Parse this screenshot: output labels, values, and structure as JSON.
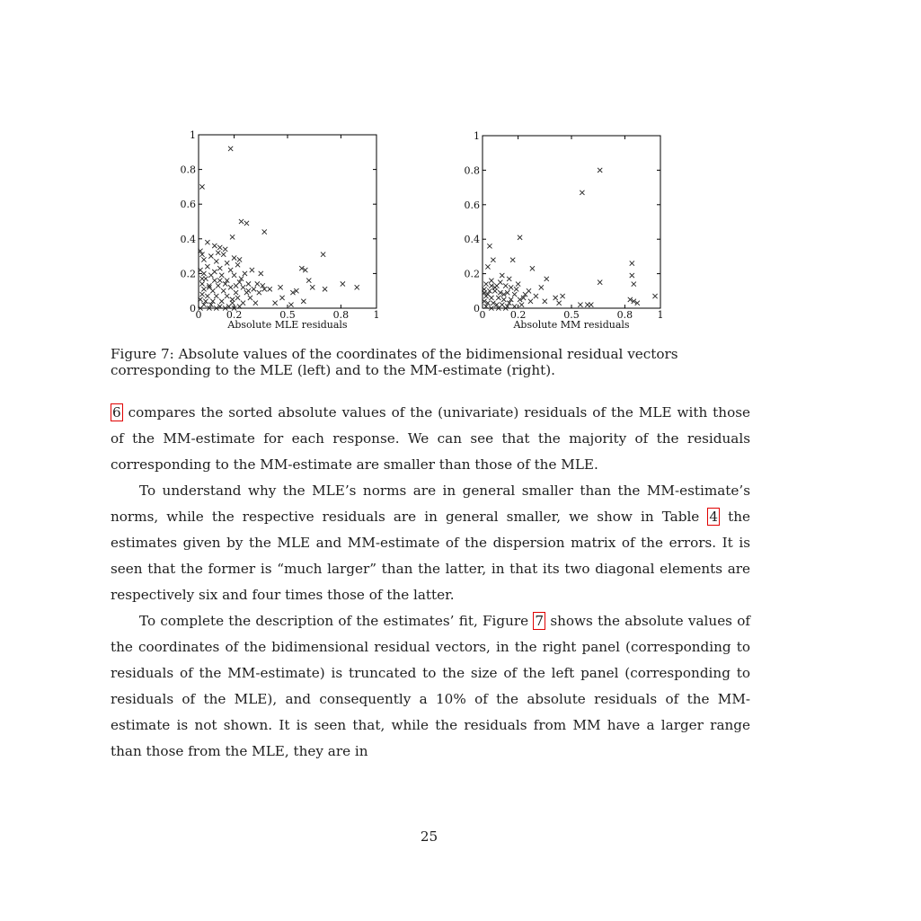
{
  "chart_data": [
    {
      "type": "scatter",
      "xlabel": "Absolute MLE residuals",
      "xlim": [
        0,
        1
      ],
      "ylim": [
        0,
        1
      ],
      "x_ticks": [
        0,
        0.2,
        0.5,
        0.8,
        1
      ],
      "y_ticks": [
        0,
        0.2,
        0.4,
        0.6,
        0.8,
        1
      ],
      "x_tick_labels": [
        "0",
        "0.2",
        "0.5",
        "0.8",
        "1"
      ],
      "y_tick_labels": [
        "0",
        "0.2",
        "0.4",
        "0.6",
        "0.8",
        "1"
      ],
      "marker": "x",
      "points": [
        [
          0.18,
          0.92
        ],
        [
          0.02,
          0.7
        ],
        [
          0.24,
          0.5
        ],
        [
          0.27,
          0.49
        ],
        [
          0.37,
          0.44
        ],
        [
          0.19,
          0.41
        ],
        [
          0.05,
          0.38
        ],
        [
          0.09,
          0.36
        ],
        [
          0.12,
          0.35
        ],
        [
          0.15,
          0.34
        ],
        [
          0.11,
          0.32
        ],
        [
          0.01,
          0.33
        ],
        [
          0.02,
          0.31
        ],
        [
          0.07,
          0.3
        ],
        [
          0.14,
          0.31
        ],
        [
          0.2,
          0.29
        ],
        [
          0.23,
          0.28
        ],
        [
          0.03,
          0.28
        ],
        [
          0.1,
          0.27
        ],
        [
          0.16,
          0.26
        ],
        [
          0.22,
          0.25
        ],
        [
          0.05,
          0.24
        ],
        [
          0.12,
          0.23
        ],
        [
          0.18,
          0.22
        ],
        [
          0.3,
          0.22
        ],
        [
          0.35,
          0.2
        ],
        [
          0.01,
          0.22
        ],
        [
          0.03,
          0.2
        ],
        [
          0.07,
          0.19
        ],
        [
          0.13,
          0.19
        ],
        [
          0.2,
          0.19
        ],
        [
          0.26,
          0.2
        ],
        [
          0.04,
          0.17
        ],
        [
          0.09,
          0.16
        ],
        [
          0.16,
          0.16
        ],
        [
          0.23,
          0.15
        ],
        [
          0.28,
          0.14
        ],
        [
          0.33,
          0.14
        ],
        [
          0.02,
          0.14
        ],
        [
          0.06,
          0.13
        ],
        [
          0.11,
          0.13
        ],
        [
          0.18,
          0.12
        ],
        [
          0.25,
          0.12
        ],
        [
          0.31,
          0.11
        ],
        [
          0.37,
          0.11
        ],
        [
          0.03,
          0.11
        ],
        [
          0.08,
          0.1
        ],
        [
          0.14,
          0.1
        ],
        [
          0.21,
          0.09
        ],
        [
          0.27,
          0.09
        ],
        [
          0.34,
          0.09
        ],
        [
          0.02,
          0.08
        ],
        [
          0.05,
          0.07
        ],
        [
          0.1,
          0.07
        ],
        [
          0.16,
          0.07
        ],
        [
          0.22,
          0.06
        ],
        [
          0.29,
          0.06
        ],
        [
          0.01,
          0.05
        ],
        [
          0.04,
          0.04
        ],
        [
          0.08,
          0.04
        ],
        [
          0.13,
          0.04
        ],
        [
          0.19,
          0.03
        ],
        [
          0.25,
          0.03
        ],
        [
          0.32,
          0.03
        ],
        [
          0.03,
          0.02
        ],
        [
          0.07,
          0.02
        ],
        [
          0.12,
          0.01
        ],
        [
          0.17,
          0.01
        ],
        [
          0.23,
          0.01
        ],
        [
          0.06,
          0.12
        ],
        [
          0.15,
          0.14
        ],
        [
          0.24,
          0.17
        ],
        [
          0.09,
          0.21
        ],
        [
          0.19,
          0.05
        ],
        [
          0.28,
          0.1
        ],
        [
          0.12,
          0.16
        ],
        [
          0.21,
          0.13
        ],
        [
          0.02,
          0.17
        ],
        [
          0.36,
          0.13
        ],
        [
          0.4,
          0.11
        ],
        [
          0.46,
          0.12
        ],
        [
          0.53,
          0.09
        ],
        [
          0.55,
          0.1
        ],
        [
          0.58,
          0.23
        ],
        [
          0.6,
          0.22
        ],
        [
          0.62,
          0.16
        ],
        [
          0.64,
          0.12
        ],
        [
          0.7,
          0.31
        ],
        [
          0.71,
          0.11
        ],
        [
          0.81,
          0.14
        ],
        [
          0.89,
          0.12
        ],
        [
          0.52,
          0.02
        ],
        [
          0.59,
          0.04
        ],
        [
          0.47,
          0.06
        ],
        [
          0.43,
          0.03
        ],
        [
          0.01,
          0.0
        ],
        [
          0.06,
          0.0
        ],
        [
          0.1,
          0.0
        ],
        [
          0.15,
          0.0
        ],
        [
          0.2,
          0.0
        ]
      ]
    },
    {
      "type": "scatter",
      "xlabel": "Absolute MM residuals",
      "xlim": [
        0,
        1
      ],
      "ylim": [
        0,
        1
      ],
      "x_ticks": [
        0,
        0.2,
        0.5,
        0.8,
        1
      ],
      "y_ticks": [
        0,
        0.2,
        0.4,
        0.6,
        0.8,
        1
      ],
      "x_tick_labels": [
        "0",
        "0.2",
        "0.5",
        "0.8",
        "1"
      ],
      "y_tick_labels": [
        "0",
        "0.2",
        "0.4",
        "0.6",
        "0.8",
        "1"
      ],
      "marker": "x",
      "points": [
        [
          0.66,
          0.8
        ],
        [
          0.56,
          0.67
        ],
        [
          0.21,
          0.41
        ],
        [
          0.04,
          0.36
        ],
        [
          0.06,
          0.28
        ],
        [
          0.17,
          0.28
        ],
        [
          0.03,
          0.24
        ],
        [
          0.28,
          0.23
        ],
        [
          0.84,
          0.26
        ],
        [
          0.84,
          0.19
        ],
        [
          0.11,
          0.19
        ],
        [
          0.15,
          0.17
        ],
        [
          0.36,
          0.17
        ],
        [
          0.05,
          0.16
        ],
        [
          0.02,
          0.14
        ],
        [
          0.08,
          0.13
        ],
        [
          0.13,
          0.13
        ],
        [
          0.2,
          0.14
        ],
        [
          0.33,
          0.12
        ],
        [
          0.66,
          0.15
        ],
        [
          0.85,
          0.14
        ],
        [
          0.01,
          0.11
        ],
        [
          0.04,
          0.1
        ],
        [
          0.07,
          0.1
        ],
        [
          0.1,
          0.09
        ],
        [
          0.14,
          0.09
        ],
        [
          0.18,
          0.08
        ],
        [
          0.24,
          0.08
        ],
        [
          0.3,
          0.07
        ],
        [
          0.41,
          0.06
        ],
        [
          0.45,
          0.07
        ],
        [
          0.02,
          0.07
        ],
        [
          0.05,
          0.06
        ],
        [
          0.09,
          0.06
        ],
        [
          0.12,
          0.05
        ],
        [
          0.16,
          0.05
        ],
        [
          0.21,
          0.05
        ],
        [
          0.27,
          0.04
        ],
        [
          0.35,
          0.04
        ],
        [
          0.43,
          0.03
        ],
        [
          0.55,
          0.02
        ],
        [
          0.59,
          0.02
        ],
        [
          0.61,
          0.02
        ],
        [
          0.83,
          0.05
        ],
        [
          0.85,
          0.04
        ],
        [
          0.87,
          0.03
        ],
        [
          0.97,
          0.07
        ],
        [
          0.01,
          0.04
        ],
        [
          0.03,
          0.03
        ],
        [
          0.06,
          0.03
        ],
        [
          0.08,
          0.02
        ],
        [
          0.11,
          0.02
        ],
        [
          0.14,
          0.01
        ],
        [
          0.18,
          0.01
        ],
        [
          0.02,
          0.01
        ],
        [
          0.05,
          0.0
        ],
        [
          0.09,
          0.0
        ],
        [
          0.13,
          0.0
        ],
        [
          0.03,
          0.08
        ],
        [
          0.07,
          0.12
        ],
        [
          0.1,
          0.15
        ],
        [
          0.15,
          0.03
        ],
        [
          0.19,
          0.11
        ],
        [
          0.23,
          0.06
        ],
        [
          0.01,
          0.09
        ],
        [
          0.12,
          0.08
        ],
        [
          0.26,
          0.1
        ],
        [
          0.16,
          0.12
        ],
        [
          0.05,
          0.13
        ],
        [
          0.22,
          0.02
        ]
      ]
    }
  ],
  "caption": "Figure 7: Absolute values of the coordinates of the bidimensional residual vectors corresponding to the MLE (left) and to the MM-estimate (right).",
  "paragraphs": {
    "p1_ref": "6",
    "p1_text": " compares the sorted absolute values of the (univariate) residuals of the MLE with those of the MM-estimate for each response. We can see that the majority of the residuals corresponding to the MM-estimate are smaller than those of the MLE.",
    "p2_a": "To understand why the MLE’s norms are in general smaller than the MM-estimate’s norms, while the respective residuals are in general smaller, we show in Table ",
    "p2_ref": "4",
    "p2_b": " the estimates given by the MLE and MM-estimate of the dispersion matrix of the errors. It is seen that the former is “much larger” than the latter, in that its two diagonal elements are respectively six and four times those of the latter.",
    "p3_a": "To complete the description of the estimates’ fit, Figure ",
    "p3_ref": "7",
    "p3_b": " shows the absolute values of the coordinates of the bidimensional residual vectors, in the right panel (corresponding to residuals of the MM-estimate) is truncated to the size of the left panel (corresponding to residuals of the MLE), and consequently a 10% of the absolute residuals of the MM-estimate is not shown. It is seen that, while the residuals from MM have a larger range than those from the MLE, they are in"
  },
  "page_number": "25"
}
